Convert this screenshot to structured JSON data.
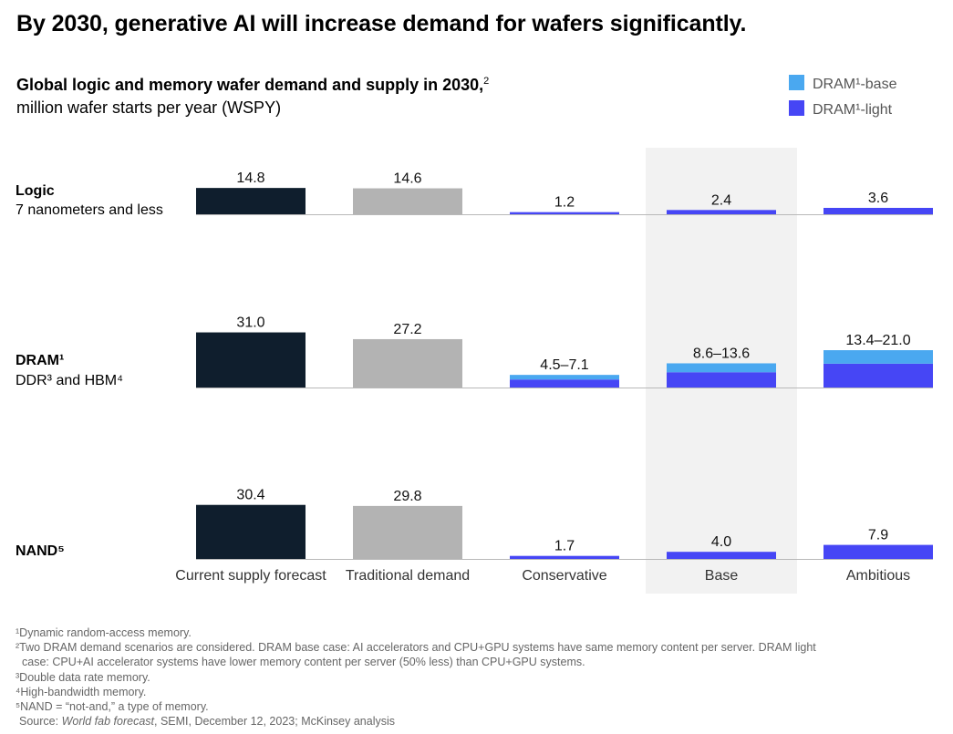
{
  "headline": "By 2030, generative AI will increase demand for wafers significantly.",
  "subtitle": "Global logic and memory wafer demand and supply in 2030,",
  "subtitle_sup": "2",
  "units": "million wafer starts per year (WSPY)",
  "legend": [
    {
      "label": "DRAM¹-base",
      "color": "#4aa8f0"
    },
    {
      "label": "DRAM¹-light",
      "color": "#4646f5"
    }
  ],
  "colors": {
    "supply": "#0f1e2d",
    "traditional": "#b3b3b3",
    "dram_base": "#4aa8f0",
    "dram_light": "#4646f5",
    "highlight": "#f2f2f2",
    "axis": "#b8b8b8"
  },
  "rows": [
    {
      "title": "Logic",
      "subtitle": "7 nanometers and less"
    },
    {
      "title": "DRAM¹",
      "subtitle": "DDR³ and HBM⁴"
    },
    {
      "title": "NAND⁵",
      "subtitle": ""
    }
  ],
  "chart_data": {
    "type": "bar",
    "title": "Global logic and memory wafer demand and supply in 2030",
    "ylabel": "million wafer starts per year (WSPY)",
    "categories": [
      "Current supply forecast",
      "Traditional demand",
      "Conservative",
      "Base",
      "Ambitious"
    ],
    "highlighted_category": "Base",
    "panels": [
      {
        "name": "Logic",
        "values": [
          14.8,
          14.6,
          1.2,
          2.4,
          3.6
        ],
        "labels": [
          "14.8",
          "14.6",
          "1.2",
          "2.4",
          "3.6"
        ],
        "light": [
          null,
          null,
          1.2,
          2.4,
          3.6
        ],
        "base": [
          null,
          null,
          null,
          null,
          null
        ]
      },
      {
        "name": "DRAM",
        "values": [
          31.0,
          27.2,
          7.1,
          13.6,
          21.0
        ],
        "labels": [
          "31.0",
          "27.2",
          "4.5–7.1",
          "8.6–13.6",
          "13.4–21.0"
        ],
        "light": [
          null,
          null,
          4.5,
          8.6,
          13.4
        ],
        "base": [
          null,
          null,
          7.1,
          13.6,
          21.0
        ]
      },
      {
        "name": "NAND",
        "values": [
          30.4,
          29.8,
          1.7,
          4.0,
          7.9
        ],
        "labels": [
          "30.4",
          "29.8",
          "1.7",
          "4.0",
          "7.9"
        ],
        "light": [
          null,
          null,
          1.7,
          4.0,
          7.9
        ],
        "base": [
          null,
          null,
          null,
          null,
          null
        ]
      }
    ]
  },
  "footnotes": {
    "f1": "¹Dynamic random-access memory.",
    "f2a": "²Two DRAM demand scenarios are considered. DRAM base case: AI accelerators and CPU+GPU systems have same memory content per server. DRAM light",
    "f2b": "case: CPU+AI accelerator systems have lower memory content per server (50% less) than CPU+GPU systems.",
    "f3": "³Double data rate memory.",
    "f4": "⁴High-bandwidth memory.",
    "f5": "⁵NAND = “not-and,” a type of memory.",
    "source_prefix": "Source: ",
    "source_italic": "World fab forecast",
    "source_rest": ", SEMI, December 12, 2023; McKinsey analysis"
  }
}
